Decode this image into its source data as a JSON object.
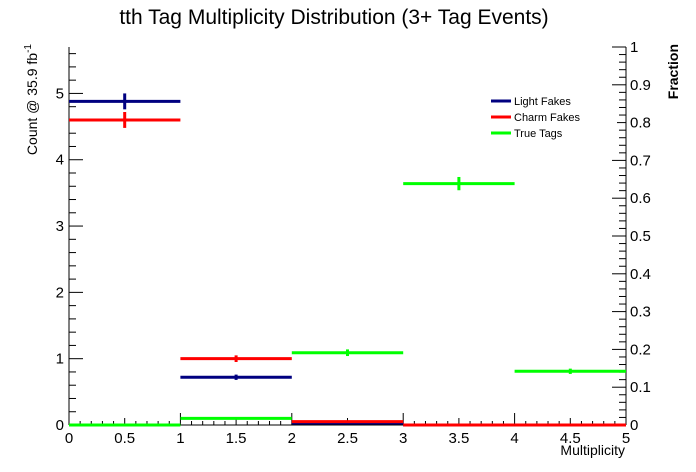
{
  "chart_data": {
    "type": "scatter",
    "title": "tth Tag Multiplicity Distribution (3+ Tag Events)",
    "xlabel": "Multiplicity",
    "ylabel": "Count @ 35.9 fb",
    "ylabel_sup": "-1",
    "y2label": "Fraction",
    "xlim": [
      0,
      5
    ],
    "ylim": [
      0,
      5.7
    ],
    "y2lim": [
      0,
      1
    ],
    "x_ticks": [
      "0",
      "0.5",
      "1",
      "1.5",
      "2",
      "2.5",
      "3",
      "3.5",
      "4",
      "4.5",
      "5"
    ],
    "y_ticks": [
      "0",
      "1",
      "2",
      "3",
      "4",
      "5"
    ],
    "y2_ticks": [
      "0",
      "0.1",
      "0.2",
      "0.3",
      "0.4",
      "0.5",
      "0.6",
      "0.7",
      "0.8",
      "0.9",
      "1"
    ],
    "legend_position": "top-right",
    "series": [
      {
        "name": "Light Fakes",
        "color": "#000080",
        "points": [
          {
            "xlo": 0,
            "xhi": 1,
            "y": 4.88,
            "err": 0.12
          },
          {
            "xlo": 1,
            "xhi": 2,
            "y": 0.72,
            "err": 0.04
          },
          {
            "xlo": 2,
            "xhi": 3,
            "y": 0.03,
            "err": 0.01
          },
          {
            "xlo": 3,
            "xhi": 4,
            "y": 0.0,
            "err": 0
          },
          {
            "xlo": 4,
            "xhi": 5,
            "y": 0.0,
            "err": 0
          }
        ]
      },
      {
        "name": "Charm Fakes",
        "color": "#ff0000",
        "points": [
          {
            "xlo": 0,
            "xhi": 1,
            "y": 4.6,
            "err": 0.12
          },
          {
            "xlo": 1,
            "xhi": 2,
            "y": 1.0,
            "err": 0.05
          },
          {
            "xlo": 2,
            "xhi": 3,
            "y": 0.05,
            "err": 0.01
          },
          {
            "xlo": 3,
            "xhi": 4,
            "y": 0.0,
            "err": 0
          },
          {
            "xlo": 4,
            "xhi": 5,
            "y": 0.0,
            "err": 0
          }
        ]
      },
      {
        "name": "True Tags",
        "color": "#00ff00",
        "points": [
          {
            "xlo": 0,
            "xhi": 1,
            "y": 0.0,
            "err": 0
          },
          {
            "xlo": 1,
            "xhi": 2,
            "y": 0.1,
            "err": 0.01
          },
          {
            "xlo": 2,
            "xhi": 3,
            "y": 1.09,
            "err": 0.05
          },
          {
            "xlo": 3,
            "xhi": 4,
            "y": 3.64,
            "err": 0.1
          },
          {
            "xlo": 4,
            "xhi": 5,
            "y": 0.81,
            "err": 0.04
          }
        ]
      }
    ]
  }
}
